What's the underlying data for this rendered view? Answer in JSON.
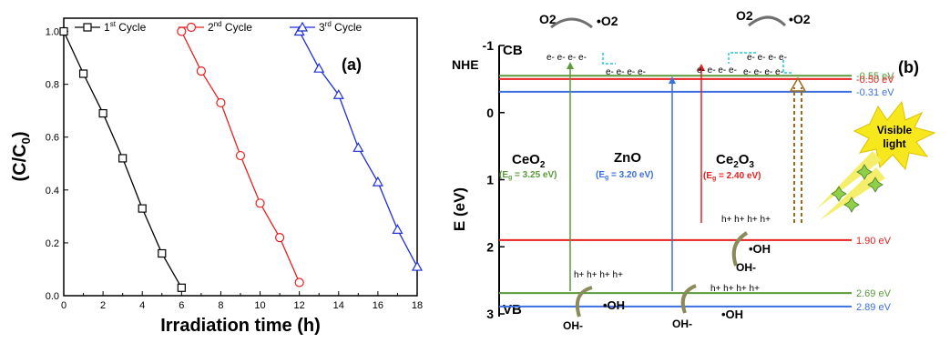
{
  "chart_data": [
    {
      "type": "line",
      "panel_label": "(a)",
      "xlabel": "Irradiation time (h)",
      "ylabel_main": "(C/C",
      "ylabel_sub": "0",
      "ylabel_end": ")",
      "xlim": [
        0,
        18
      ],
      "ylim": [
        0,
        1.05
      ],
      "xticks": [
        "0",
        "2",
        "4",
        "6",
        "8",
        "10",
        "12",
        "14",
        "16",
        "18"
      ],
      "yticks": [
        "0.0",
        "0.2",
        "0.4",
        "0.6",
        "0.8",
        "1.0"
      ],
      "legend_placement": "top",
      "series": [
        {
          "name": "1st Cycle",
          "name_base": "1",
          "name_sup": "st",
          "name_rest": " Cycle",
          "color": "#000000",
          "marker": "square",
          "x": [
            0,
            1,
            2,
            3,
            4,
            5,
            6
          ],
          "y": [
            1.0,
            0.84,
            0.69,
            0.52,
            0.33,
            0.16,
            0.03
          ]
        },
        {
          "name": "2nd Cycle",
          "name_base": "2",
          "name_sup": "nd",
          "name_rest": " Cycle",
          "color": "#e8201f",
          "marker": "circle",
          "x": [
            6,
            7,
            8,
            9,
            10,
            11,
            12
          ],
          "y": [
            1.0,
            0.85,
            0.73,
            0.53,
            0.35,
            0.22,
            0.05
          ]
        },
        {
          "name": "3rd Cycle",
          "name_base": "3",
          "name_sup": "rd",
          "name_rest": " Cycle",
          "color": "#1f2fd6",
          "marker": "triangle",
          "x": [
            12,
            13,
            14,
            15,
            16,
            17,
            18
          ],
          "y": [
            1.0,
            0.86,
            0.76,
            0.56,
            0.43,
            0.25,
            0.11
          ]
        }
      ]
    },
    {
      "type": "diagram",
      "panel_label": "(b)",
      "ylabel": "E (eV)",
      "ylim": [
        -1,
        3
      ],
      "yticks": [
        "-1",
        "0",
        "1",
        "2",
        "3"
      ],
      "nhe_label": "NHE",
      "cb_label": "CB",
      "vb_label": "VB",
      "levels": [
        {
          "value": -0.55,
          "label": "-0.55 eV",
          "color": "#5a9a3a"
        },
        {
          "value": -0.5,
          "label": "-0.50 eV",
          "color": "#e8201f"
        },
        {
          "value": -0.31,
          "label": "-0.31 eV",
          "color": "#3a6fe0"
        },
        {
          "value": 1.9,
          "label": "1.90 eV",
          "color": "#e8201f"
        },
        {
          "value": 2.69,
          "label": "2.69 eV",
          "color": "#5a9a3a"
        },
        {
          "value": 2.89,
          "label": "2.89 eV",
          "color": "#3a6fe0"
        }
      ],
      "materials": [
        {
          "name": "CeO",
          "sub": "2",
          "gap": "(E",
          "gap_sub": "g",
          "gap_rest": " = 3.25 eV)",
          "color": "#5a9a3a"
        },
        {
          "name": "ZnO",
          "sub": "",
          "gap": "(E",
          "gap_sub": "g",
          "gap_rest": " = 3.20 eV)",
          "color": "#3a6fe0"
        },
        {
          "name": "Ce",
          "sub": "2",
          "name2": "O",
          "sub2": "3",
          "gap": "(E",
          "gap_sub": "g",
          "gap_rest": " = 2.40 eV)",
          "color": "#e8201f"
        }
      ],
      "electron_label": "e- e- e- e-",
      "hole_label": "h+ h+ h+ h+",
      "o2": "O2",
      "o2_radical": "•O2",
      "oh_minus": "OH-",
      "oh_radical": "•OH",
      "visible_light": [
        "Visible",
        "light"
      ]
    }
  ]
}
